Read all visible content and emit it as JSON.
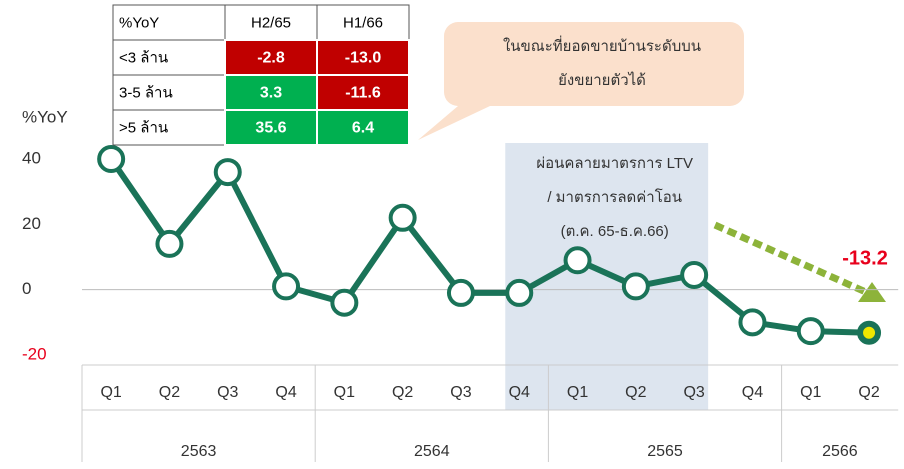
{
  "chart_data": {
    "type": "line",
    "y_label": "%YoY",
    "categories": [
      "Q1",
      "Q2",
      "Q3",
      "Q4",
      "Q1",
      "Q2",
      "Q3",
      "Q4",
      "Q1",
      "Q2",
      "Q3",
      "Q4",
      "Q1",
      "Q2"
    ],
    "groups": [
      {
        "label": "2563",
        "count": 4
      },
      {
        "label": "2564",
        "count": 4
      },
      {
        "label": "2565",
        "count": 4
      },
      {
        "label": "2566",
        "count": 2
      }
    ],
    "values": [
      40,
      14,
      36,
      1,
      -4,
      22,
      -1,
      -1,
      9,
      1,
      4.5,
      -10,
      -12.7,
      -13.2
    ],
    "last_label": "-13.2",
    "color": "#1a7358",
    "highlight_color": "#e8001c",
    "ylim": [
      -20,
      40
    ],
    "yticks": [
      -20,
      0,
      20,
      40
    ],
    "grid": true,
    "shade": {
      "from": 7,
      "to": 10,
      "color": "#dde5ef",
      "text": [
        "ผ่อนคลายมาตรการ LTV",
        "/ มาตรการลดค่าโอน",
        "(ต.ค. 65-ธ.ค.66)"
      ]
    },
    "callout": [
      "ในขณะที่ยอดขายบ้านระดับบน",
      "ยังขยายตัวได้"
    ],
    "table": {
      "header": [
        "%YoY",
        "H2/65",
        "H1/66"
      ],
      "negative_color": "#c00000",
      "positive_color": "#00b050",
      "rows": [
        {
          "label": "<3 ล้าน",
          "values": [
            -2.8,
            -13
          ],
          "value_labels": [
            "-2.8",
            "-13.0"
          ]
        },
        {
          "label": "3-5 ล้าน",
          "values": [
            3.3,
            -11.6
          ],
          "value_labels": [
            "3.3",
            "-11.6"
          ]
        },
        {
          "label": ">5 ล้าน",
          "values": [
            35.6,
            6.4
          ],
          "value_labels": [
            "35.6",
            "6.4"
          ]
        }
      ]
    }
  }
}
